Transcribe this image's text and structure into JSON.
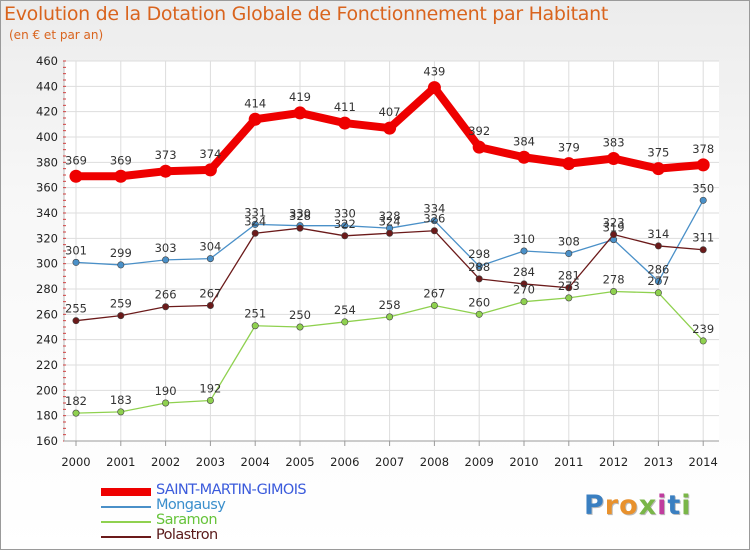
{
  "title": "Evolution de la Dotation Globale de Fonctionnement par Habitant",
  "subtitle": "(en € et par an)",
  "logo": {
    "text": "Proxiti",
    "letter_colors": [
      "#3a7fc1",
      "#e8912d",
      "#e8912d",
      "#7ab648",
      "#c03c9e",
      "#3a7fc1",
      "#7ab648"
    ]
  },
  "chart_data": {
    "type": "line",
    "title": "Evolution de la Dotation Globale de Fonctionnement par Habitant",
    "subtitle": "(en € et par an)",
    "x": [
      "2000",
      "2001",
      "2002",
      "2003",
      "2004",
      "2005",
      "2006",
      "2007",
      "2008",
      "2009",
      "2010",
      "2011",
      "2012",
      "2013",
      "2014"
    ],
    "ylim": [
      160,
      460
    ],
    "yticks": [
      160,
      180,
      200,
      220,
      240,
      260,
      280,
      300,
      320,
      340,
      360,
      380,
      400,
      420,
      440,
      460
    ],
    "grid": true,
    "legend_position": "bottom-left",
    "series": [
      {
        "name": "SAINT-MARTIN-GIMOIS",
        "color": "#ee0000",
        "emphasis": true,
        "legend_text_color": "#3b5bdc",
        "values": [
          369,
          369,
          373,
          374,
          414,
          419,
          411,
          407,
          439,
          392,
          384,
          379,
          383,
          375,
          378
        ]
      },
      {
        "name": "Mongausy",
        "color": "#4a90c8",
        "emphasis": false,
        "legend_text_color": "#3b8fcc",
        "values": [
          301,
          299,
          303,
          304,
          331,
          330,
          330,
          328,
          334,
          298,
          310,
          308,
          319,
          286,
          350
        ]
      },
      {
        "name": "Saramon",
        "color": "#8fd14f",
        "emphasis": false,
        "legend_text_color": "#66c33a",
        "values": [
          182,
          183,
          190,
          192,
          251,
          250,
          254,
          258,
          267,
          260,
          270,
          273,
          278,
          277,
          239
        ]
      },
      {
        "name": "Polastron",
        "color": "#6b1a1a",
        "emphasis": false,
        "legend_text_color": "#5a1a1a",
        "values": [
          255,
          259,
          266,
          267,
          324,
          328,
          322,
          324,
          326,
          288,
          284,
          281,
          323,
          314,
          311
        ]
      }
    ]
  }
}
